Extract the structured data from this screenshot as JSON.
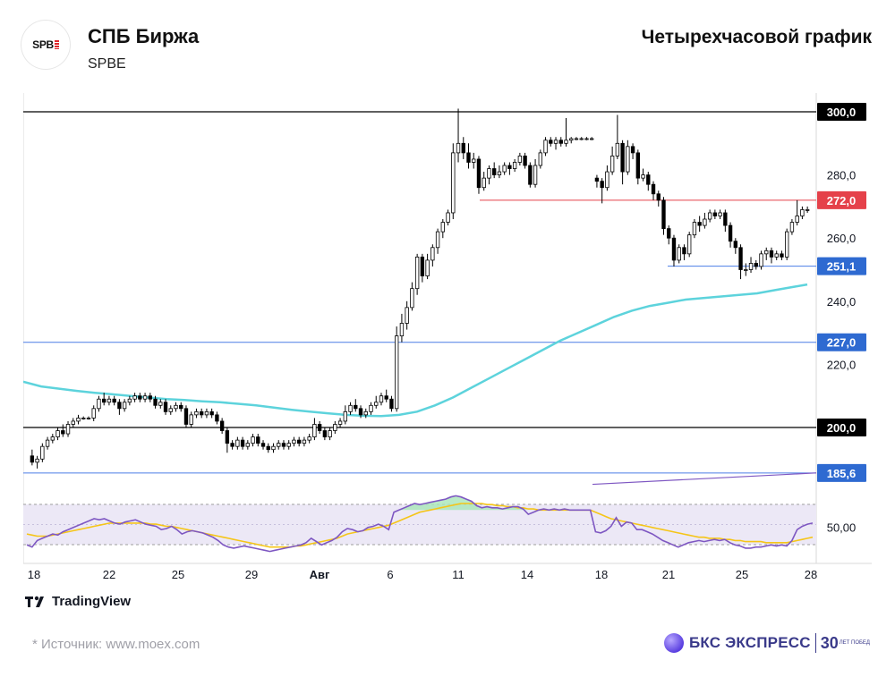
{
  "header": {
    "logo_text": "SPB",
    "title": "СПБ Биржа",
    "ticker": "SPBE",
    "period": "Четырехчасовой график"
  },
  "footer": {
    "tradingview": "TradingView",
    "source": "*  Источник: www.moex.com",
    "brand": "БКС ЭКСПРЕСС",
    "brand_years": "30",
    "brand_years_small": "ЛЕТ ПОБЕД"
  },
  "colors": {
    "up": "#ffffff",
    "down": "#000000",
    "ma": "#5dd3dc",
    "rsi": "#7e57c2",
    "rsi_signal": "#f5c518",
    "resistance_red": "#e5414a",
    "support_blue": "#4c7ee6",
    "level_black": "#000000"
  },
  "chart_data": {
    "type": "candlestick",
    "title": "СПБ Биржа",
    "ylim": [
      178,
      304
    ],
    "y_ticks": [
      220,
      240,
      260,
      280
    ],
    "y_tick_labels": [
      "220,0",
      "240,0",
      "260,0",
      "280,0"
    ],
    "x_tick_labels": [
      "18",
      "22",
      "25",
      "29",
      "Авг",
      "6",
      "11",
      "14",
      "18",
      "21",
      "25",
      "28"
    ],
    "price_levels": [
      {
        "value": 300.0,
        "label": "300,0",
        "style": "black"
      },
      {
        "value": 272.0,
        "label": "272,0",
        "style": "red"
      },
      {
        "value": 251.1,
        "label": "251,1",
        "style": "blue"
      },
      {
        "value": 227.0,
        "label": "227,0",
        "style": "blue"
      },
      {
        "value": 200.0,
        "label": "200,0",
        "style": "black"
      },
      {
        "value": 185.6,
        "label": "185,6",
        "style": "blue"
      }
    ],
    "candles": [
      [
        191.0,
        189.0,
        193.0,
        188.0
      ],
      [
        189.0,
        190.0,
        191.0,
        187.0
      ],
      [
        190.0,
        194.0,
        195.0,
        189.0
      ],
      [
        194.0,
        196.0,
        197.0,
        193.0
      ],
      [
        196.0,
        197.0,
        198.0,
        195.0
      ],
      [
        197.0,
        199.0,
        200.0,
        196.0
      ],
      [
        199.0,
        198.0,
        201.0,
        197.0
      ],
      [
        198.0,
        201.0,
        202.0,
        197.0
      ],
      [
        201.0,
        202.0,
        203.0,
        200.0
      ],
      [
        202.0,
        203.0,
        204.0,
        201.0
      ],
      [
        203.0,
        203.0,
        203.5,
        202.5
      ],
      [
        203.0,
        203.0,
        203.5,
        202.5
      ],
      [
        203.0,
        206.0,
        207.0,
        202.0
      ],
      [
        206.0,
        209.0,
        210.0,
        205.0
      ],
      [
        209.0,
        208.0,
        211.0,
        207.0
      ],
      [
        208.0,
        209.0,
        210.0,
        207.0
      ],
      [
        209.0,
        208.0,
        210.0,
        207.0
      ],
      [
        208.0,
        206.0,
        209.0,
        204.0
      ],
      [
        206.0,
        208.0,
        209.0,
        205.0
      ],
      [
        208.0,
        209.0,
        210.0,
        207.0
      ],
      [
        209.0,
        210.0,
        211.0,
        208.0
      ],
      [
        210.0,
        209.0,
        211.0,
        208.0
      ],
      [
        209.0,
        210.0,
        211.0,
        208.0
      ],
      [
        210.0,
        209.0,
        211.0,
        208.0
      ],
      [
        209.0,
        207.0,
        210.0,
        206.0
      ],
      [
        207.0,
        208.0,
        209.0,
        206.0
      ],
      [
        208.0,
        205.0,
        209.0,
        204.0
      ],
      [
        205.0,
        206.0,
        207.0,
        204.0
      ],
      [
        206.0,
        207.0,
        208.0,
        205.0
      ],
      [
        207.0,
        206.0,
        208.0,
        205.0
      ],
      [
        206.0,
        201.0,
        207.0,
        200.0
      ],
      [
        201.0,
        204.0,
        205.0,
        200.0
      ],
      [
        204.0,
        205.0,
        206.0,
        203.0
      ],
      [
        205.0,
        204.0,
        206.0,
        203.0
      ],
      [
        204.0,
        205.0,
        206.0,
        203.0
      ],
      [
        205.0,
        204.0,
        206.0,
        203.0
      ],
      [
        204.0,
        202.0,
        205.0,
        201.0
      ],
      [
        202.0,
        199.0,
        203.0,
        198.0
      ],
      [
        199.0,
        195.0,
        200.0,
        192.0
      ],
      [
        195.0,
        194.0,
        196.0,
        193.0
      ],
      [
        194.0,
        196.0,
        197.0,
        193.0
      ],
      [
        196.0,
        194.0,
        197.0,
        193.0
      ],
      [
        194.0,
        195.0,
        196.0,
        193.0
      ],
      [
        195.0,
        197.0,
        198.0,
        194.0
      ],
      [
        197.0,
        195.0,
        198.0,
        194.0
      ],
      [
        195.0,
        194.0,
        196.0,
        193.0
      ],
      [
        194.0,
        193.0,
        195.0,
        192.0
      ],
      [
        193.0,
        194.0,
        195.0,
        192.0
      ],
      [
        194.0,
        195.0,
        196.0,
        193.0
      ],
      [
        195.0,
        194.0,
        196.0,
        193.0
      ],
      [
        194.0,
        195.0,
        196.0,
        193.0
      ],
      [
        195.0,
        196.0,
        197.0,
        194.0
      ],
      [
        196.0,
        195.0,
        197.0,
        194.0
      ],
      [
        195.0,
        196.0,
        197.0,
        194.0
      ],
      [
        196.0,
        197.0,
        198.0,
        195.0
      ],
      [
        197.0,
        201.0,
        203.0,
        196.0
      ],
      [
        201.0,
        199.0,
        202.0,
        198.0
      ],
      [
        199.0,
        197.0,
        200.0,
        196.0
      ],
      [
        197.0,
        199.0,
        200.0,
        196.0
      ],
      [
        199.0,
        201.0,
        202.0,
        198.0
      ],
      [
        201.0,
        202.0,
        203.0,
        200.0
      ],
      [
        202.0,
        205.0,
        207.0,
        201.0
      ],
      [
        205.0,
        207.0,
        208.0,
        204.0
      ],
      [
        207.0,
        206.0,
        209.0,
        205.0
      ],
      [
        206.0,
        204.0,
        207.0,
        203.0
      ],
      [
        204.0,
        205.0,
        206.0,
        203.0
      ],
      [
        205.0,
        207.0,
        208.0,
        204.0
      ],
      [
        207.0,
        208.0,
        210.0,
        206.0
      ],
      [
        208.0,
        210.0,
        211.0,
        207.0
      ],
      [
        210.0,
        209.0,
        212.0,
        208.0
      ],
      [
        209.0,
        206.0,
        210.0,
        205.0
      ],
      [
        206.0,
        229.0,
        232.0,
        205.0
      ],
      [
        229.0,
        233.0,
        236.0,
        227.0
      ],
      [
        233.0,
        238.0,
        240.0,
        231.0
      ],
      [
        238.0,
        244.0,
        246.0,
        237.0
      ],
      [
        244.0,
        254.0,
        255.0,
        242.0
      ],
      [
        254.0,
        248.0,
        255.0,
        246.0
      ],
      [
        248.0,
        253.0,
        255.0,
        247.0
      ],
      [
        253.0,
        257.0,
        258.0,
        251.0
      ],
      [
        257.0,
        262.0,
        263.0,
        255.0
      ],
      [
        262.0,
        265.0,
        266.0,
        260.0
      ],
      [
        265.0,
        268.0,
        269.0,
        264.0
      ],
      [
        268.0,
        287.0,
        290.0,
        266.0
      ],
      [
        287.0,
        290.0,
        301.0,
        284.0
      ],
      [
        290.0,
        287.0,
        292.0,
        285.0
      ],
      [
        287.0,
        284.0,
        290.0,
        282.0
      ],
      [
        284.0,
        285.0,
        287.0,
        282.0
      ],
      [
        285.0,
        276.0,
        286.0,
        274.0
      ],
      [
        276.0,
        279.0,
        281.0,
        275.0
      ],
      [
        279.0,
        282.0,
        283.0,
        277.0
      ],
      [
        282.0,
        280.0,
        284.0,
        279.0
      ],
      [
        280.0,
        281.0,
        283.0,
        279.0
      ],
      [
        281.0,
        283.0,
        284.0,
        280.0
      ],
      [
        283.0,
        282.0,
        284.0,
        280.0
      ],
      [
        282.0,
        284.0,
        285.0,
        281.0
      ],
      [
        284.0,
        286.0,
        287.0,
        283.0
      ],
      [
        286.0,
        283.0,
        287.0,
        282.0
      ],
      [
        283.0,
        277.0,
        284.0,
        276.0
      ],
      [
        277.0,
        283.0,
        285.0,
        276.0
      ],
      [
        283.0,
        287.0,
        288.0,
        282.0
      ],
      [
        287.0,
        291.0,
        292.0,
        286.0
      ],
      [
        291.0,
        290.0,
        292.0,
        289.0
      ],
      [
        290.0,
        291.0,
        292.0,
        288.0
      ],
      [
        291.0,
        290.0,
        292.0,
        289.0
      ],
      [
        290.0,
        291.0,
        298.0,
        289.0
      ],
      [
        291.0,
        291.5,
        292.0,
        290.0
      ],
      [
        291.5,
        291.5,
        292.0,
        291.0
      ],
      [
        291.5,
        291.5,
        292.0,
        291.0
      ],
      [
        291.5,
        291.5,
        292.0,
        291.0
      ],
      [
        291.5,
        291.5,
        292.0,
        291.0
      ],
      [
        279.0,
        278.0,
        280.0,
        276.0
      ],
      [
        278.0,
        276.0,
        279.0,
        271.0
      ],
      [
        276.0,
        281.0,
        283.0,
        275.0
      ],
      [
        281.0,
        286.0,
        289.0,
        280.0
      ],
      [
        286.0,
        290.0,
        299.0,
        285.0
      ],
      [
        290.0,
        281.0,
        291.0,
        277.0
      ],
      [
        281.0,
        289.0,
        291.0,
        280.0
      ],
      [
        289.0,
        287.0,
        290.0,
        285.0
      ],
      [
        287.0,
        279.0,
        288.0,
        277.0
      ],
      [
        279.0,
        280.0,
        282.0,
        278.0
      ],
      [
        280.0,
        277.0,
        281.0,
        275.0
      ],
      [
        277.0,
        274.0,
        278.0,
        272.0
      ],
      [
        274.0,
        272.0,
        275.0,
        270.0
      ],
      [
        272.0,
        263.0,
        273.0,
        261.0
      ],
      [
        263.0,
        260.0,
        264.0,
        258.0
      ],
      [
        260.0,
        253.0,
        261.0,
        251.0
      ],
      [
        253.0,
        257.0,
        258.0,
        252.0
      ],
      [
        257.0,
        255.0,
        258.0,
        253.0
      ],
      [
        255.0,
        261.0,
        262.0,
        254.0
      ],
      [
        261.0,
        265.0,
        266.0,
        260.0
      ],
      [
        265.0,
        264.0,
        267.0,
        262.0
      ],
      [
        264.0,
        266.0,
        268.0,
        263.0
      ],
      [
        266.0,
        268.0,
        269.0,
        265.0
      ],
      [
        268.0,
        267.0,
        269.0,
        266.0
      ],
      [
        267.0,
        268.0,
        269.0,
        266.0
      ],
      [
        268.0,
        264.0,
        269.0,
        262.0
      ],
      [
        264.0,
        259.0,
        265.0,
        257.0
      ],
      [
        259.0,
        257.0,
        260.0,
        255.0
      ],
      [
        257.0,
        250.0,
        258.0,
        247.0
      ],
      [
        250.0,
        250.0,
        252.0,
        248.0
      ],
      [
        250.0,
        252.0,
        254.0,
        249.0
      ],
      [
        252.0,
        251.0,
        253.0,
        250.0
      ],
      [
        251.0,
        255.0,
        256.0,
        250.0
      ],
      [
        255.0,
        256.0,
        257.0,
        253.0
      ],
      [
        256.0,
        254.0,
        257.0,
        252.0
      ],
      [
        254.0,
        255.0,
        256.0,
        253.0
      ],
      [
        255.0,
        254.0,
        256.0,
        253.0
      ],
      [
        254.0,
        262.0,
        263.0,
        253.0
      ],
      [
        262.0,
        265.0,
        266.0,
        261.0
      ],
      [
        265.0,
        267.0,
        272.0,
        264.0
      ],
      [
        267.0,
        269.0,
        270.0,
        266.0
      ],
      [
        269.0,
        269.0,
        270.0,
        268.0
      ]
    ],
    "ma": [
      [
        0,
        214.5
      ],
      [
        20,
        213.0
      ],
      [
        40,
        212.3
      ],
      [
        60,
        211.6
      ],
      [
        80,
        211.0
      ],
      [
        100,
        210.5
      ],
      [
        120,
        210.0
      ],
      [
        140,
        209.5
      ],
      [
        160,
        209.0
      ],
      [
        180,
        208.7
      ],
      [
        200,
        208.3
      ],
      [
        220,
        208.0
      ],
      [
        240,
        207.5
      ],
      [
        260,
        207.0
      ],
      [
        280,
        206.3
      ],
      [
        300,
        205.6
      ],
      [
        320,
        205.0
      ],
      [
        340,
        204.5
      ],
      [
        360,
        204.0
      ],
      [
        380,
        203.7
      ],
      [
        400,
        203.6
      ],
      [
        420,
        204.0
      ],
      [
        440,
        205.0
      ],
      [
        460,
        207.0
      ],
      [
        480,
        209.5
      ],
      [
        500,
        212.5
      ],
      [
        520,
        215.5
      ],
      [
        540,
        218.5
      ],
      [
        560,
        221.5
      ],
      [
        580,
        224.5
      ],
      [
        600,
        227.5
      ],
      [
        620,
        230.0
      ],
      [
        640,
        232.5
      ],
      [
        660,
        235.0
      ],
      [
        680,
        237.0
      ],
      [
        700,
        238.5
      ],
      [
        720,
        239.5
      ],
      [
        740,
        240.5
      ],
      [
        760,
        241.0
      ],
      [
        780,
        241.5
      ],
      [
        800,
        242.0
      ],
      [
        820,
        242.5
      ],
      [
        840,
        243.5
      ],
      [
        860,
        244.5
      ],
      [
        876,
        245.3
      ]
    ],
    "rsi_line_extension": {
      "from": [
        636,
        182.0
      ],
      "to": [
        886,
        185.6
      ]
    },
    "rsi_band_label": "50,00",
    "rsi": [
      38,
      36,
      42,
      44,
      46,
      48,
      47,
      50,
      52,
      54,
      56,
      58,
      60,
      62,
      61,
      62,
      60,
      58,
      57,
      59,
      60,
      61,
      59,
      57,
      56,
      55,
      52,
      53,
      55,
      52,
      48,
      50,
      51,
      50,
      49,
      47,
      45,
      42,
      38,
      36,
      35,
      36,
      37,
      36,
      35,
      34,
      33,
      32,
      33,
      34,
      35,
      36,
      37,
      38,
      40,
      44,
      41,
      38,
      40,
      42,
      45,
      50,
      53,
      52,
      50,
      51,
      54,
      55,
      57,
      55,
      52,
      68,
      70,
      72,
      74,
      76,
      75,
      76,
      77,
      78,
      79,
      80,
      82,
      83,
      82,
      80,
      78,
      74,
      72,
      73,
      72,
      72,
      71,
      72,
      73,
      73,
      71,
      66,
      68,
      70,
      71,
      70,
      71,
      70,
      71,
      70,
      70,
      70,
      70,
      70,
      50,
      49,
      51,
      55,
      63,
      55,
      59,
      58,
      52,
      52,
      50,
      48,
      45,
      42,
      40,
      38,
      36,
      38,
      40,
      41,
      42,
      41,
      42,
      43,
      42,
      43,
      40,
      38,
      37,
      35,
      35,
      36,
      36,
      37,
      38,
      37,
      38,
      37,
      42,
      52,
      55,
      57,
      58
    ],
    "rsi_signal": [
      48,
      47,
      46,
      46,
      46,
      47,
      48,
      49,
      50,
      51,
      52,
      53,
      54,
      55,
      56,
      57,
      58,
      58,
      58,
      58,
      58,
      58,
      58,
      58,
      57,
      57,
      56,
      55,
      55,
      54,
      53,
      52,
      51,
      50,
      49,
      48,
      47,
      46,
      45,
      44,
      43,
      42,
      41,
      40,
      39,
      38,
      37,
      36,
      36,
      36,
      36,
      36,
      37,
      37,
      38,
      39,
      40,
      41,
      42,
      43,
      44,
      46,
      48,
      49,
      50,
      51,
      52,
      53,
      54,
      55,
      56,
      58,
      60,
      62,
      64,
      66,
      68,
      69,
      70,
      71,
      72,
      73,
      74,
      75,
      76,
      76,
      76,
      76,
      76,
      75,
      75,
      74,
      74,
      73,
      73,
      72,
      72,
      71,
      71,
      70,
      70,
      70,
      70,
      70,
      70,
      70,
      70,
      70,
      70,
      70,
      68,
      66,
      64,
      62,
      61,
      60,
      59,
      58,
      57,
      56,
      55,
      54,
      53,
      52,
      51,
      50,
      49,
      48,
      47,
      46,
      45,
      45,
      44,
      44,
      44,
      43,
      43,
      42,
      42,
      41,
      41,
      41,
      41,
      40,
      40,
      40,
      40,
      40,
      41,
      42,
      43,
      44,
      45
    ]
  }
}
